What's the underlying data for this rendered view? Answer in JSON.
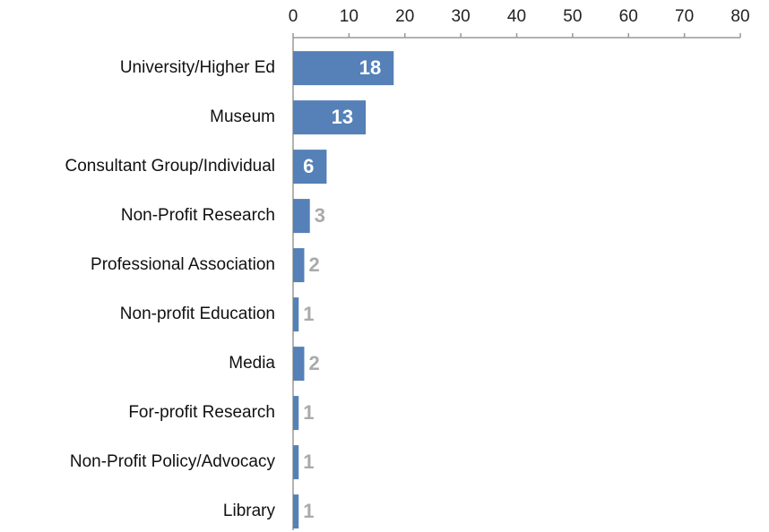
{
  "chart_data": {
    "type": "bar",
    "orientation": "horizontal",
    "categories": [
      "University/Higher Ed",
      "Museum",
      "Consultant Group/Individual",
      "Non-Profit Research",
      "Professional Association",
      "Non-profit Education",
      "Media",
      "For-profit Research",
      "Non-Profit Policy/Advocacy",
      "Library"
    ],
    "values": [
      18,
      13,
      6,
      3,
      2,
      1,
      2,
      1,
      1,
      1
    ],
    "color": "#5580b8",
    "xlim": [
      0,
      80
    ],
    "xticks": [
      0,
      10,
      20,
      30,
      40,
      50,
      60,
      70,
      80
    ]
  }
}
